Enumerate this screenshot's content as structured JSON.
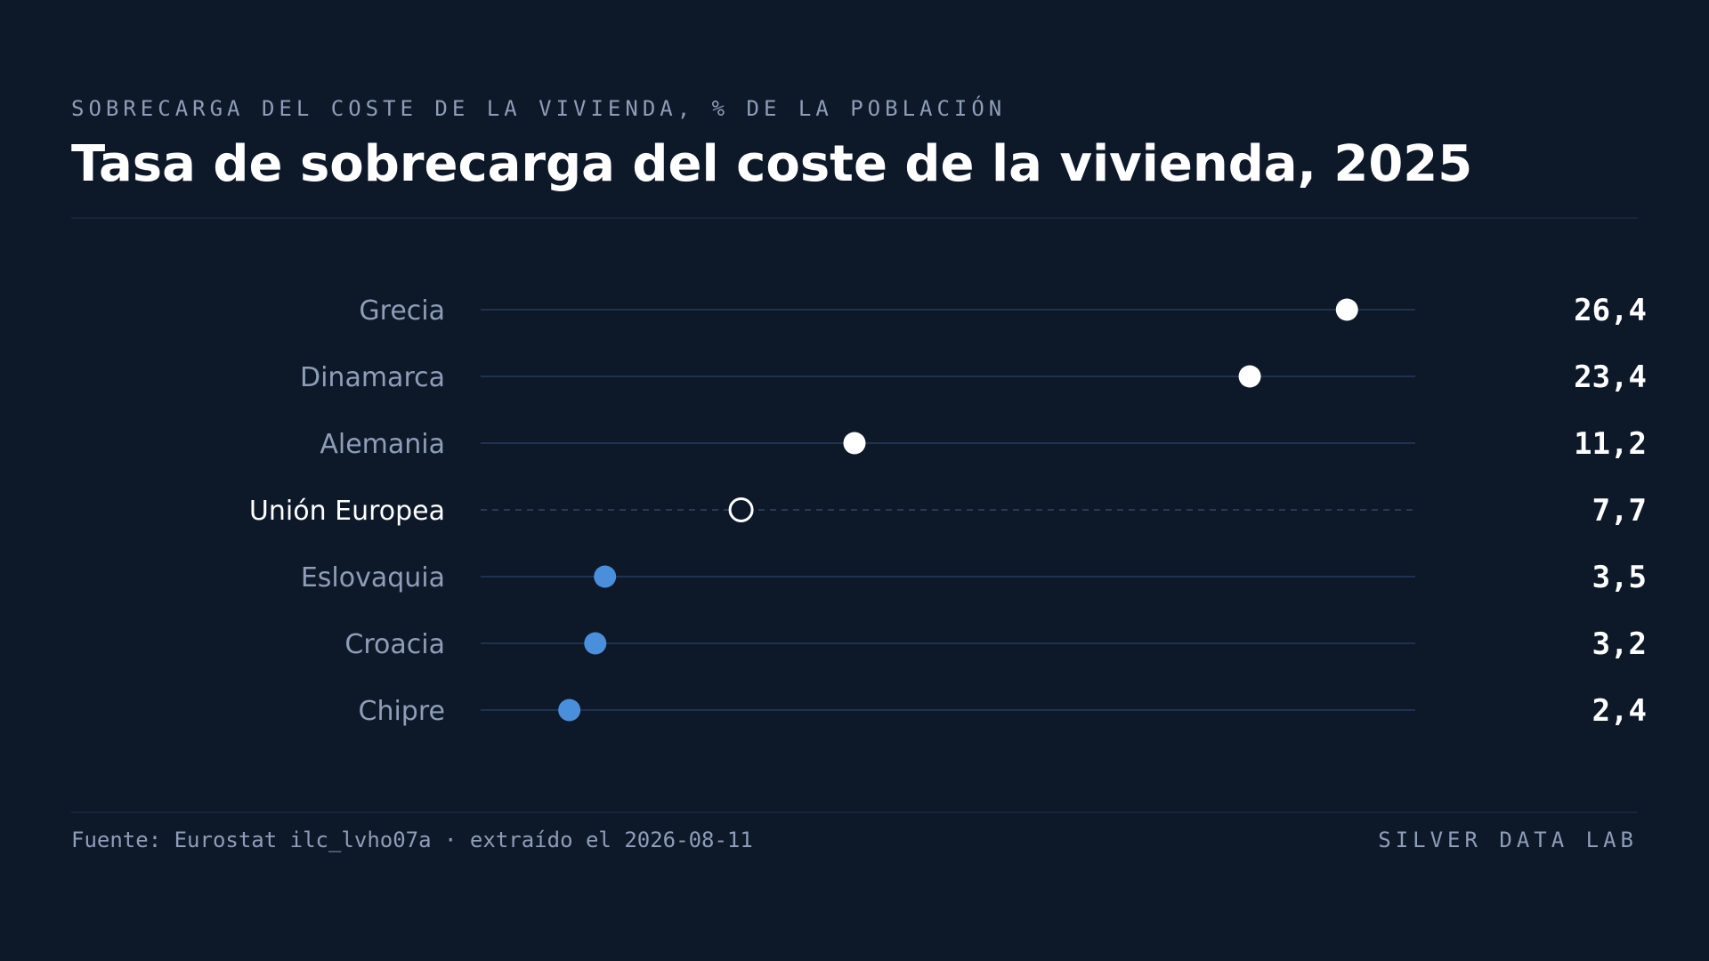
{
  "header": {
    "eyebrow": "SOBRECARGA DEL COSTE DE LA VIVIENDA, % DE LA POBLACIÓN",
    "title": "Tasa de sobrecarga del coste de la vivienda, 2025"
  },
  "footer": {
    "source": "Fuente: Eurostat ilc_lvho07a · extraído el 2026-08-11",
    "brand": "SILVER DATA LAB"
  },
  "colors": {
    "background": "#0d1829",
    "high_dot": "#ffffff",
    "low_dot": "#4a8fdb",
    "reference_dot": "#ffffff",
    "track": "#1f3350",
    "label": "#8e9db8",
    "reference_label": "#ffffff",
    "value": "#ffffff"
  },
  "chart_data": {
    "type": "dot",
    "orientation": "horizontal",
    "xlim": [
      0,
      30
    ],
    "grid": false,
    "legend": "none",
    "categories": [
      "Grecia",
      "Dinamarca",
      "Alemania",
      "Unión Europea",
      "Eslovaquia",
      "Croacia",
      "Chipre"
    ],
    "values": [
      26.4,
      23.4,
      11.2,
      7.7,
      3.5,
      3.2,
      2.4
    ],
    "value_labels": [
      "26,4",
      "23,4",
      "11,2",
      "7,7",
      "3,5",
      "3,2",
      "2,4"
    ],
    "groups": [
      "high",
      "high",
      "high",
      "reference",
      "low",
      "low",
      "low"
    ]
  }
}
